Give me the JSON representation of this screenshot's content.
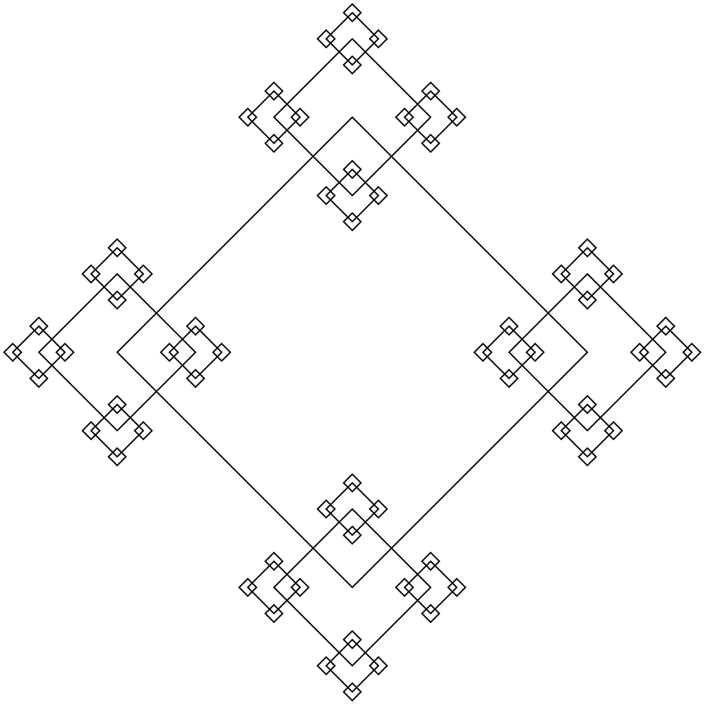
{
  "figure": {
    "kind": "recursive diamond fractal",
    "recursion_levels": 4,
    "branches_per_diamond": 4,
    "child_scale": 0.3333,
    "stroke_color": "#000000",
    "background_color": "#ffffff"
  }
}
